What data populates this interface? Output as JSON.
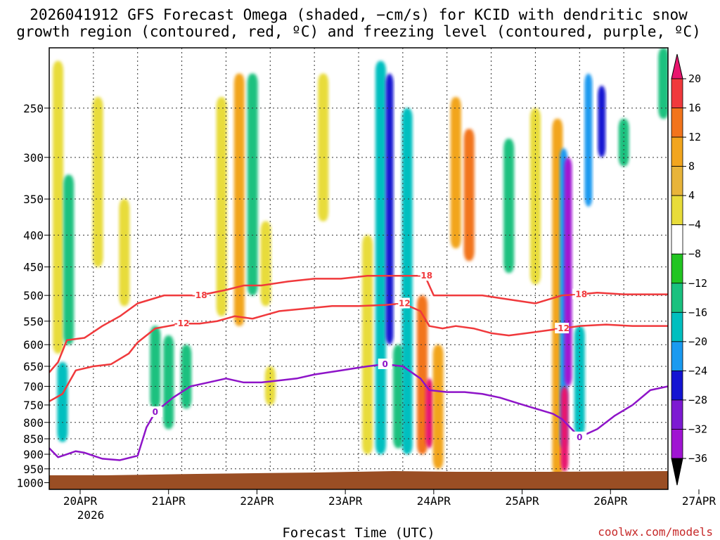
{
  "chart_data": {
    "type": "heatmap",
    "title_line1": "2026041912 GFS Forecast Omega (shaded, −cm/s) for KCID with dendritic snow",
    "title_line2": "growth region (contoured, red, ºC) and freezing level (contoured, purple, ºC)",
    "xlabel": "Forecast Time (UTC)",
    "watermark": "coolwx.com/models",
    "x_ticks": [
      "20APR",
      "21APR",
      "22APR",
      "23APR",
      "24APR",
      "25APR",
      "26APR",
      "27APR"
    ],
    "x_year_label": "2026",
    "x_range_days": [
      0.0,
      7.0
    ],
    "y_ticks": [
      "250",
      "300",
      "350",
      "400",
      "450",
      "500",
      "550",
      "600",
      "650",
      "700",
      "750",
      "800",
      "850",
      "900",
      "950",
      "1000"
    ],
    "y_range_hpa": [
      1025,
      200
    ],
    "colorbar": {
      "labels": [
        "20",
        "16",
        "12",
        "8",
        "4",
        "−4",
        "−8",
        "−12",
        "−16",
        "−20",
        "−24",
        "−28",
        "−32",
        "−36"
      ],
      "colors": [
        "#e8166e",
        "#f0393c",
        "#f2741c",
        "#f2a51e",
        "#e8b43a",
        "#e8dc3a",
        "#ffffff",
        "#22c522",
        "#1ac17f",
        "#00bfbf",
        "#1a9af0",
        "#1414d2",
        "#7d1ad2",
        "#a014d2",
        "#9e9e9e",
        "#000000"
      ]
    },
    "omega_features": [
      {
        "day": 0.1,
        "p_top": 210,
        "p_bot": 620,
        "value": 6
      },
      {
        "day": 0.15,
        "p_top": 640,
        "p_bot": 860,
        "value": -12
      },
      {
        "day": 0.22,
        "p_top": 320,
        "p_bot": 600,
        "value": -8
      },
      {
        "day": 0.55,
        "p_top": 240,
        "p_bot": 450,
        "value": 6
      },
      {
        "day": 0.85,
        "p_top": 350,
        "p_bot": 520,
        "value": 5
      },
      {
        "day": 1.2,
        "p_top": 560,
        "p_bot": 760,
        "value": -8
      },
      {
        "day": 1.35,
        "p_top": 580,
        "p_bot": 820,
        "value": -9
      },
      {
        "day": 1.55,
        "p_top": 600,
        "p_bot": 760,
        "value": -8
      },
      {
        "day": 1.95,
        "p_top": 240,
        "p_bot": 540,
        "value": 6
      },
      {
        "day": 2.15,
        "p_top": 220,
        "p_bot": 560,
        "value": 8
      },
      {
        "day": 2.3,
        "p_top": 220,
        "p_bot": 500,
        "value": -9
      },
      {
        "day": 2.45,
        "p_top": 380,
        "p_bot": 520,
        "value": 7
      },
      {
        "day": 2.5,
        "p_top": 650,
        "p_bot": 750,
        "value": 5
      },
      {
        "day": 3.1,
        "p_top": 220,
        "p_bot": 380,
        "value": 5
      },
      {
        "day": 3.6,
        "p_top": 400,
        "p_bot": 900,
        "value": 7
      },
      {
        "day": 3.75,
        "p_top": 210,
        "p_bot": 900,
        "value": -12
      },
      {
        "day": 3.85,
        "p_top": 220,
        "p_bot": 600,
        "value": -22
      },
      {
        "day": 3.95,
        "p_top": 600,
        "p_bot": 880,
        "value": -9
      },
      {
        "day": 4.05,
        "p_top": 250,
        "p_bot": 900,
        "value": -14
      },
      {
        "day": 4.22,
        "p_top": 500,
        "p_bot": 900,
        "value": 14
      },
      {
        "day": 4.3,
        "p_top": 680,
        "p_bot": 880,
        "value": 22
      },
      {
        "day": 4.4,
        "p_top": 600,
        "p_bot": 950,
        "value": 8
      },
      {
        "day": 4.6,
        "p_top": 240,
        "p_bot": 420,
        "value": 8
      },
      {
        "day": 4.75,
        "p_top": 270,
        "p_bot": 440,
        "value": 12
      },
      {
        "day": 5.2,
        "p_top": 280,
        "p_bot": 460,
        "value": -8
      },
      {
        "day": 5.5,
        "p_top": 250,
        "p_bot": 480,
        "value": 6
      },
      {
        "day": 5.75,
        "p_top": 260,
        "p_bot": 980,
        "value": 10
      },
      {
        "day": 5.82,
        "p_top": 290,
        "p_bot": 880,
        "value": -16
      },
      {
        "day": 5.87,
        "p_top": 300,
        "p_bot": 700,
        "value": -30
      },
      {
        "day": 5.83,
        "p_top": 700,
        "p_bot": 960,
        "value": 20
      },
      {
        "day": 6.0,
        "p_top": 560,
        "p_bot": 840,
        "value": -14
      },
      {
        "day": 6.1,
        "p_top": 220,
        "p_bot": 360,
        "value": -16
      },
      {
        "day": 6.25,
        "p_top": 230,
        "p_bot": 300,
        "value": -20
      },
      {
        "day": 6.5,
        "p_top": 260,
        "p_bot": 310,
        "value": -8
      },
      {
        "day": 6.95,
        "p_top": 200,
        "p_bot": 260,
        "value": -8
      }
    ],
    "contours": [
      {
        "label": "-18",
        "color": "#f0393c",
        "days": [
          0.0,
          0.1,
          0.2,
          0.4,
          0.6,
          0.8,
          1.0,
          1.3,
          1.7,
          2.0,
          2.2,
          2.4,
          2.7,
          3.0,
          3.3,
          3.6,
          3.9,
          4.1,
          4.25,
          4.35,
          4.5,
          4.7,
          4.9,
          5.1,
          5.3,
          5.5,
          5.7,
          5.8,
          6.0,
          6.2,
          6.5,
          6.8,
          7.0
        ],
        "p": [
          665,
          640,
          590,
          585,
          560,
          540,
          515,
          500,
          500,
          490,
          482,
          482,
          475,
          470,
          470,
          465,
          465,
          465,
          465,
          500,
          500,
          500,
          500,
          505,
          510,
          515,
          505,
          500,
          498,
          495,
          498,
          498,
          498
        ]
      },
      {
        "label": "-12",
        "color": "#f0393c",
        "days": [
          0.0,
          0.15,
          0.3,
          0.5,
          0.7,
          0.9,
          1.0,
          1.2,
          1.5,
          1.7,
          1.9,
          2.1,
          2.3,
          2.6,
          2.9,
          3.2,
          3.5,
          3.8,
          4.0,
          4.2,
          4.3,
          4.45,
          4.6,
          4.8,
          5.0,
          5.2,
          5.4,
          5.6,
          5.8,
          6.0,
          6.3,
          6.6,
          7.0
        ],
        "p": [
          740,
          720,
          660,
          650,
          645,
          620,
          595,
          565,
          555,
          555,
          550,
          540,
          545,
          530,
          525,
          520,
          520,
          518,
          515,
          530,
          560,
          565,
          560,
          565,
          575,
          580,
          575,
          570,
          565,
          560,
          557,
          560,
          560
        ]
      },
      {
        "label": "0",
        "color": "#8e14c8",
        "days": [
          0.0,
          0.1,
          0.2,
          0.3,
          0.4,
          0.5,
          0.6,
          0.8,
          1.0,
          1.1,
          1.2,
          1.4,
          1.6,
          1.8,
          2.0,
          2.2,
          2.4,
          2.6,
          2.8,
          3.0,
          3.3,
          3.6,
          3.8,
          4.0,
          4.2,
          4.3,
          4.5,
          4.7,
          4.9,
          5.1,
          5.3,
          5.5,
          5.7,
          5.8,
          6.0,
          6.2,
          6.4,
          6.6,
          6.8,
          7.0
        ],
        "p": [
          880,
          910,
          900,
          890,
          895,
          905,
          915,
          920,
          905,
          815,
          770,
          730,
          700,
          690,
          680,
          690,
          690,
          685,
          680,
          670,
          660,
          650,
          645,
          650,
          680,
          710,
          715,
          715,
          720,
          730,
          745,
          760,
          775,
          790,
          845,
          820,
          780,
          750,
          710,
          700
        ]
      }
    ]
  }
}
